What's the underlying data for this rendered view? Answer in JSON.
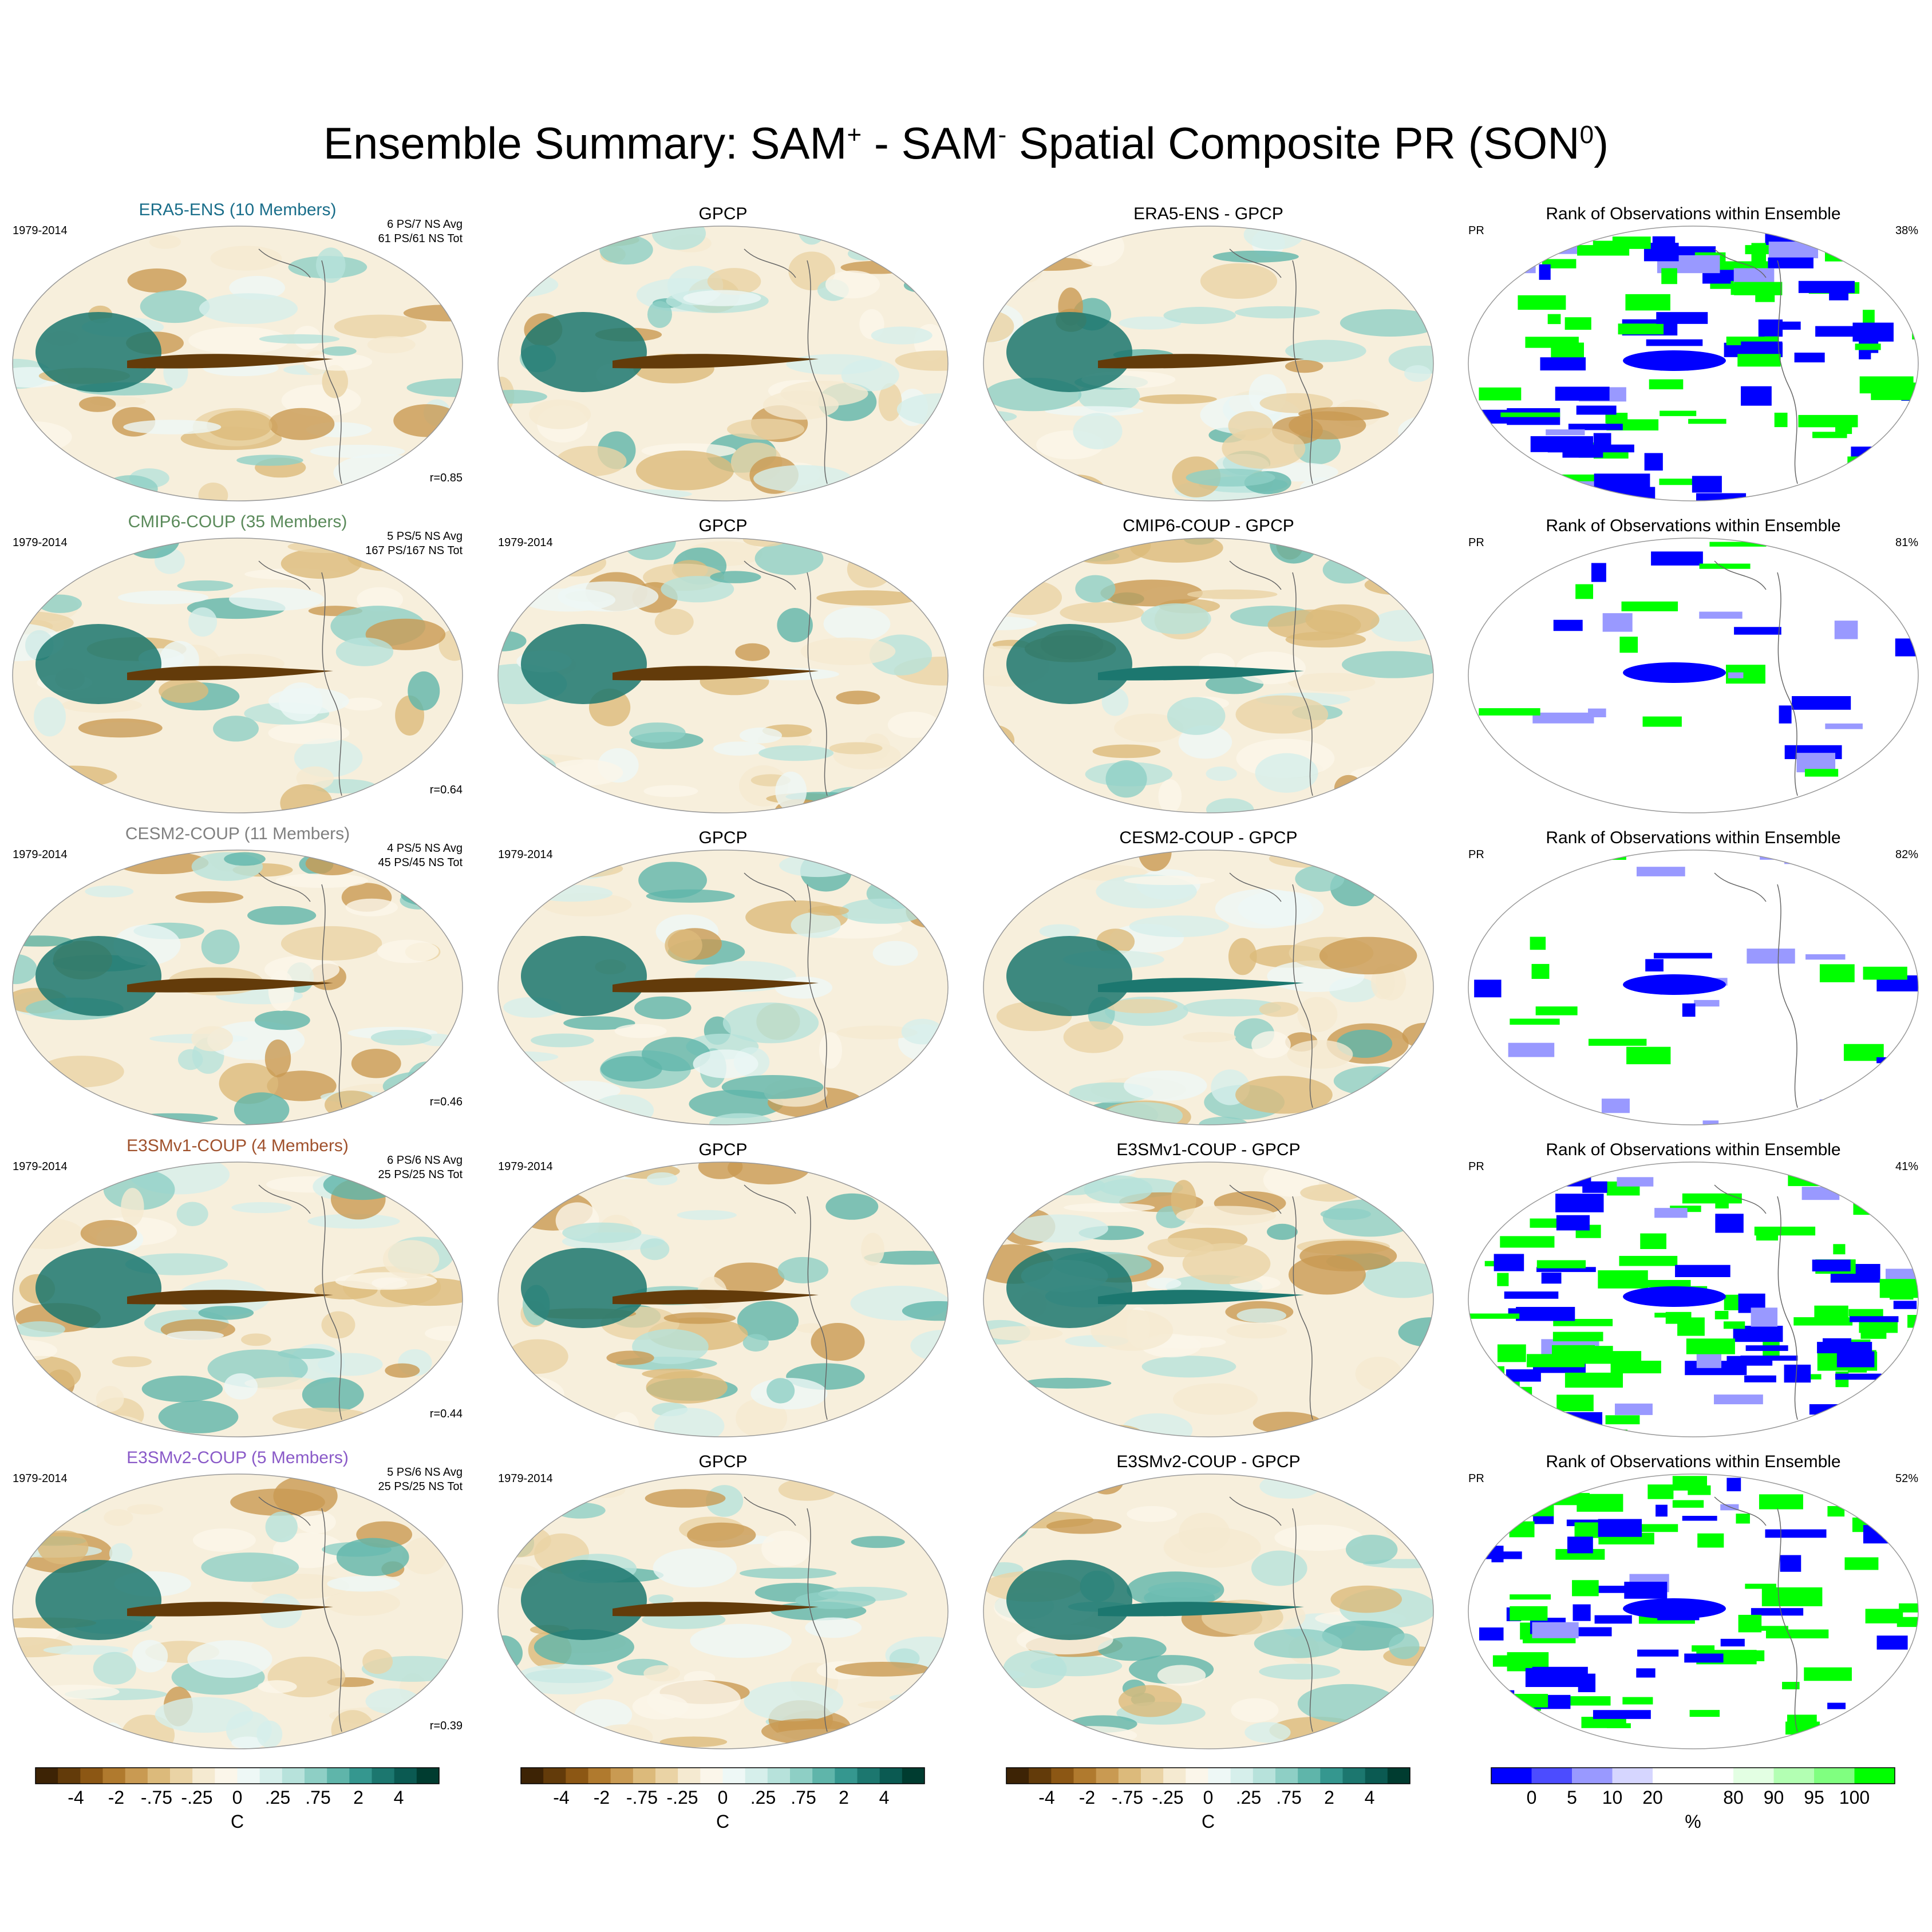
{
  "title": {
    "pre": "Ensemble Summary: SAM",
    "sup1": "+",
    "mid": " - SAM",
    "sup2": "-",
    "post": " Spatial Composite PR (SON",
    "sup3": "0",
    "end": ")"
  },
  "common": {
    "period": "1979-2014",
    "obs_title": "GPCP",
    "rank_title": "Rank of Observations within Ensemble",
    "rank_var": "PR"
  },
  "colors": {
    "brown_dark": "#543005",
    "brown": "#a6611a",
    "tan": "#dfc27d",
    "cream": "#f6e8c3",
    "white": "#ffffff",
    "teal_light": "#c7eae5",
    "teal": "#35978f",
    "teal_dark": "#003c30",
    "rank_blue": "#0000ff",
    "rank_green": "#00ff00"
  },
  "rows": [
    {
      "name": "ERA5-ENS (10 Members)",
      "name_color": "#1a6e8a",
      "stats1": "6 PS/7 NS Avg",
      "stats2": "61 PS/61 NS Tot",
      "r": "r=0.85",
      "diff": "ERA5-ENS - GPCP",
      "pct": "38%",
      "show_period_obs": false
    },
    {
      "name": "CMIP6-COUP (35 Members)",
      "name_color": "#5a8a5a",
      "stats1": "5 PS/5 NS Avg",
      "stats2": "167 PS/167 NS Tot",
      "r": "r=0.64",
      "diff": "CMIP6-COUP - GPCP",
      "pct": "81%",
      "show_period_obs": true
    },
    {
      "name": "CESM2-COUP (11 Members)",
      "name_color": "#808080",
      "stats1": "4 PS/5 NS Avg",
      "stats2": "45 PS/45 NS Tot",
      "r": "r=0.46",
      "diff": "CESM2-COUP - GPCP",
      "pct": "82%",
      "show_period_obs": true
    },
    {
      "name": "E3SMv1-COUP (4 Members)",
      "name_color": "#a0522d",
      "stats1": "6 PS/6 NS Avg",
      "stats2": "25 PS/25 NS Tot",
      "r": "r=0.44",
      "diff": "E3SMv1-COUP - GPCP",
      "pct": "41%",
      "show_period_obs": true
    },
    {
      "name": "E3SMv2-COUP (5 Members)",
      "name_color": "#8a5ac8",
      "stats1": "5 PS/6 NS Avg",
      "stats2": "25 PS/25 NS Tot",
      "r": "r=0.39",
      "diff": "E3SMv2-COUP - GPCP",
      "pct": "52%",
      "show_period_obs": true
    }
  ],
  "colorbar": {
    "unit": "C",
    "labels": [
      "-4",
      "-2",
      "-.75",
      "-.25",
      "0",
      ".25",
      ".75",
      "2",
      "4"
    ],
    "colors": [
      "#3d2305",
      "#633b0a",
      "#8c5714",
      "#b07a2e",
      "#c99a52",
      "#dcba7b",
      "#ead3a5",
      "#f5ead1",
      "#fbf6ea",
      "#eef8f6",
      "#d6efeb",
      "#b7e2db",
      "#8ecfc5",
      "#5fb5aa",
      "#35978f",
      "#1c776f",
      "#0b5a52",
      "#003c30"
    ]
  },
  "rank_colorbar": {
    "unit": "%",
    "labels": [
      "0",
      "5",
      "10",
      "20",
      "80",
      "90",
      "95",
      "100"
    ],
    "colors": [
      "#0000ff",
      "#4c4cff",
      "#9999ff",
      "#d6d6ff",
      "#ffffff",
      "#ffffff",
      "#e3ffe3",
      "#b3ffb3",
      "#80ff80",
      "#00ff00"
    ]
  }
}
